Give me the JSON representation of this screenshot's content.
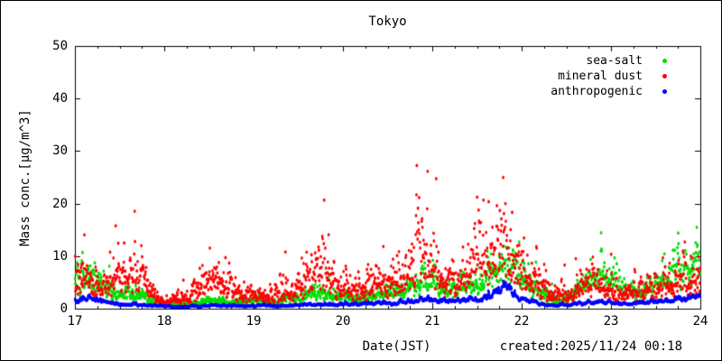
{
  "chart_data": {
    "type": "scatter",
    "title": "Tokyo",
    "xlabel": "Date(JST)",
    "ylabel": "Mass conc.[µg/m^3]",
    "created_label": "created:2025/11/24 00:18",
    "xlim": [
      17,
      24
    ],
    "ylim": [
      0,
      50
    ],
    "x_ticks": [
      17,
      18,
      19,
      20,
      21,
      22,
      23,
      24
    ],
    "x_tick_labels": [
      "17",
      "18",
      "19",
      "20",
      "21",
      "22",
      "23",
      "24"
    ],
    "x_minor_tick_step": 0.25,
    "y_ticks": [
      0,
      10,
      20,
      30,
      40,
      50
    ],
    "y_tick_labels": [
      "0",
      "10",
      "20",
      "30",
      "40",
      "50"
    ],
    "grid": false,
    "legend_position": "top-right-inside",
    "sample_start": 17,
    "sample_step_days": 0.1,
    "points_per_day": 240,
    "series": [
      {
        "name": "sea-salt",
        "color": "#00dd00",
        "median": [
          5.5,
          6.0,
          5.5,
          4.5,
          3.5,
          3.0,
          3.0,
          2.5,
          2.0,
          1.2,
          0.8,
          0.7,
          0.8,
          1.0,
          1.2,
          1.5,
          1.5,
          1.3,
          1.2,
          1.5,
          2.0,
          1.5,
          1.2,
          1.5,
          1.8,
          2.0,
          2.5,
          3.5,
          3.0,
          2.5,
          2.2,
          2.0,
          2.2,
          2.5,
          2.8,
          3.0,
          3.0,
          3.5,
          4.5,
          6.0,
          5.5,
          4.0,
          3.5,
          4.0,
          4.5,
          5.0,
          5.5,
          6.5,
          7.5,
          7.0,
          6.5,
          5.0,
          3.5,
          2.0,
          1.5,
          2.0,
          3.0,
          4.5,
          6.0,
          6.5,
          5.5,
          4.0,
          3.0,
          3.0,
          3.5,
          4.5,
          5.5,
          6.5,
          8.0,
          8.5,
          8.0
        ],
        "scatter_sigma": 0.25,
        "autocorr": 0.4,
        "max_observed": 15.5,
        "seed": 101
      },
      {
        "name": "mineral dust",
        "color": "#ff0000",
        "median": [
          5.0,
          5.5,
          5.0,
          4.5,
          5.0,
          6.0,
          6.5,
          6.0,
          4.0,
          2.0,
          1.5,
          1.5,
          1.8,
          2.5,
          4.0,
          5.5,
          5.5,
          4.5,
          3.0,
          3.0,
          3.0,
          2.5,
          2.0,
          3.0,
          3.5,
          4.0,
          5.5,
          7.0,
          6.5,
          5.0,
          4.0,
          3.5,
          4.0,
          4.5,
          5.0,
          5.5,
          5.0,
          6.0,
          8.0,
          10.0,
          9.0,
          6.0,
          5.0,
          6.0,
          7.5,
          9.0,
          11.0,
          10.0,
          11.0,
          10.0,
          8.0,
          6.0,
          4.0,
          2.5,
          2.0,
          2.5,
          3.0,
          4.0,
          4.5,
          4.0,
          3.5,
          3.0,
          3.0,
          3.5,
          3.5,
          4.0,
          4.5,
          5.0,
          5.5,
          5.0,
          4.5
        ],
        "scatter_sigma": 0.35,
        "autocorr": 0.3,
        "max_observed": 32,
        "seed": 202
      },
      {
        "name": "anthropogenic",
        "color": "#0000ff",
        "median": [
          1.8,
          1.9,
          1.8,
          1.6,
          1.2,
          0.9,
          0.8,
          0.8,
          0.7,
          0.5,
          0.45,
          0.4,
          0.4,
          0.45,
          0.5,
          0.6,
          0.6,
          0.55,
          0.5,
          0.55,
          0.6,
          0.55,
          0.5,
          0.55,
          0.6,
          0.65,
          0.7,
          0.8,
          0.8,
          0.75,
          0.8,
          0.8,
          0.85,
          0.9,
          1.0,
          1.1,
          1.1,
          1.2,
          1.5,
          1.8,
          1.9,
          1.6,
          1.5,
          1.6,
          1.8,
          2.0,
          2.2,
          2.8,
          4.5,
          2.5,
          1.8,
          1.4,
          1.1,
          0.8,
          0.7,
          0.75,
          0.85,
          1.0,
          1.1,
          1.1,
          1.2,
          1.0,
          1.0,
          1.1,
          1.2,
          1.3,
          1.5,
          1.7,
          1.9,
          2.0,
          1.8
        ],
        "scatter_sigma": 0.1,
        "autocorr": 0.8,
        "max_observed": 9,
        "seed": 303
      }
    ]
  }
}
